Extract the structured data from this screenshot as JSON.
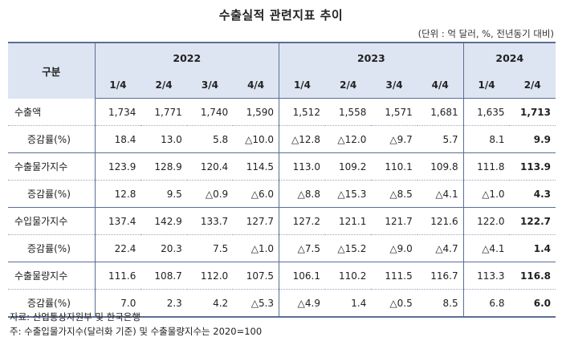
{
  "title": "수출실적 관련지표 추이",
  "unit": "(단위 : 억 달러, %, 전년동기 대비)",
  "header": {
    "gubun": "구분",
    "years": [
      "2022",
      "2023",
      "2024"
    ],
    "quarters": [
      "1/4",
      "2/4",
      "3/4",
      "4/4",
      "1/4",
      "2/4",
      "3/4",
      "4/4",
      "1/4",
      "2/4"
    ]
  },
  "rows": [
    {
      "label": "수출액",
      "sub": false,
      "values": [
        "1,734",
        "1,771",
        "1,740",
        "1,590",
        "1,512",
        "1,558",
        "1,571",
        "1,681",
        "1,635",
        "1,713"
      ]
    },
    {
      "label": "증감률(%)",
      "sub": true,
      "values": [
        "18.4",
        "13.0",
        "5.8",
        "△10.0",
        "△12.8",
        "△12.0",
        "△9.7",
        "5.7",
        "8.1",
        "9.9"
      ]
    },
    {
      "label": "수출물가지수",
      "sub": false,
      "values": [
        "123.9",
        "128.9",
        "120.4",
        "114.5",
        "113.0",
        "109.2",
        "110.1",
        "109.8",
        "111.8",
        "113.9"
      ]
    },
    {
      "label": "증감률(%)",
      "sub": true,
      "values": [
        "12.8",
        "9.5",
        "△0.9",
        "△6.0",
        "△8.8",
        "△15.3",
        "△8.5",
        "△4.1",
        "△1.0",
        "4.3"
      ]
    },
    {
      "label": "수입물가지수",
      "sub": false,
      "values": [
        "137.4",
        "142.9",
        "133.7",
        "127.7",
        "127.2",
        "121.1",
        "121.7",
        "121.6",
        "122.0",
        "122.7"
      ]
    },
    {
      "label": "증감률(%)",
      "sub": true,
      "values": [
        "22.4",
        "20.3",
        "7.5",
        "△1.0",
        "△7.5",
        "△15.2",
        "△9.0",
        "△4.7",
        "△4.1",
        "1.4"
      ]
    },
    {
      "label": "수출물량지수",
      "sub": false,
      "values": [
        "111.6",
        "108.7",
        "112.0",
        "107.5",
        "106.1",
        "110.2",
        "111.5",
        "116.7",
        "113.3",
        "116.8"
      ]
    },
    {
      "label": "증감률(%)",
      "sub": true,
      "values": [
        "7.0",
        "2.3",
        "4.2",
        "△5.3",
        "△4.9",
        "1.4",
        "△0.5",
        "8.5",
        "6.8",
        "6.0"
      ]
    }
  ],
  "notes": {
    "source": "자료: 산업통상자원부 및 한국은행",
    "note": "주: 수출입물가지수(달러화 기준) 및 수출물량지수는 2020=100"
  }
}
